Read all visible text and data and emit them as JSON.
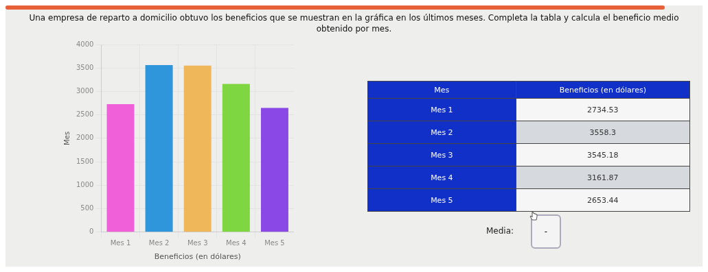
{
  "chart_data": [
    {
      "type": "bar",
      "title": "Una empresa de reparto a domicilio obtuvo los beneficios que se muestran en la gráfica en los últimos meses. Completa la tabla y calcula el beneficio medio obtenido por mes.",
      "xlabel": "Beneficios (en dólares)",
      "ylabel": "Mes",
      "categories": [
        "Mes 1",
        "Mes 2",
        "Mes 3",
        "Mes 4",
        "Mes 5"
      ],
      "values": [
        2730,
        3560,
        3550,
        3160,
        2650
      ],
      "colors": [
        "#f060d8",
        "#2f96dc",
        "#f0b65a",
        "#7ed640",
        "#8a48e6"
      ],
      "ylim": [
        0,
        4000
      ],
      "yticks": [
        0,
        500,
        1000,
        1500,
        2000,
        2500,
        3000,
        3500,
        4000
      ],
      "grid": true
    },
    {
      "type": "other",
      "annotations": [
        "Mes",
        "Beneficios (en dólares)",
        "Mes 1",
        "2734.53",
        "Mes 2",
        "3558.3",
        "Mes 3",
        "3545.18",
        "Mes 4",
        "3161.87",
        "Mes 5",
        "2653.44",
        "Media:",
        "-"
      ]
    }
  ]
}
